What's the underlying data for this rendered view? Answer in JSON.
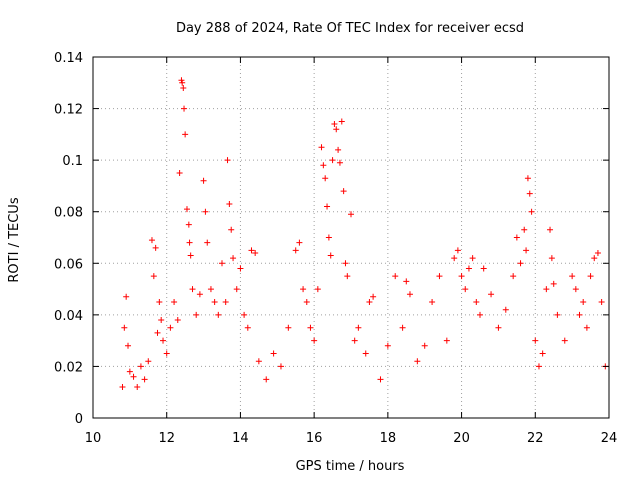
{
  "chart_data": {
    "type": "scatter",
    "title": "Day 288 of 2024, Rate Of TEC Index for receiver ecsd",
    "xlabel": "GPS time / hours",
    "ylabel": "ROTI / TECUs",
    "xlim": [
      10,
      24
    ],
    "ylim": [
      0,
      0.14
    ],
    "x_ticks": [
      "10",
      "12",
      "14",
      "16",
      "18",
      "20",
      "22",
      "24"
    ],
    "y_ticks": [
      "0",
      "0.02",
      "0.04",
      "0.06",
      "0.08",
      "0.1",
      "0.12",
      "0.14"
    ],
    "grid": true,
    "marker": "+",
    "marker_color": "#ff0000",
    "series": [
      {
        "name": "",
        "points": [
          [
            10.8,
            0.012
          ],
          [
            10.85,
            0.035
          ],
          [
            10.9,
            0.047
          ],
          [
            10.95,
            0.028
          ],
          [
            11.0,
            0.018
          ],
          [
            11.1,
            0.016
          ],
          [
            11.2,
            0.012
          ],
          [
            11.3,
            0.02
          ],
          [
            11.4,
            0.015
          ],
          [
            11.5,
            0.022
          ],
          [
            11.6,
            0.069
          ],
          [
            11.65,
            0.055
          ],
          [
            11.7,
            0.066
          ],
          [
            11.75,
            0.033
          ],
          [
            11.8,
            0.045
          ],
          [
            11.85,
            0.038
          ],
          [
            11.9,
            0.03
          ],
          [
            12.0,
            0.025
          ],
          [
            12.1,
            0.035
          ],
          [
            12.2,
            0.045
          ],
          [
            12.3,
            0.038
          ],
          [
            12.35,
            0.095
          ],
          [
            12.4,
            0.131
          ],
          [
            12.42,
            0.13
          ],
          [
            12.45,
            0.128
          ],
          [
            12.47,
            0.12
          ],
          [
            12.5,
            0.11
          ],
          [
            12.55,
            0.081
          ],
          [
            12.6,
            0.075
          ],
          [
            12.62,
            0.068
          ],
          [
            12.65,
            0.063
          ],
          [
            12.7,
            0.05
          ],
          [
            12.8,
            0.04
          ],
          [
            12.9,
            0.048
          ],
          [
            13.0,
            0.092
          ],
          [
            13.05,
            0.08
          ],
          [
            13.1,
            0.068
          ],
          [
            13.2,
            0.05
          ],
          [
            13.3,
            0.045
          ],
          [
            13.4,
            0.04
          ],
          [
            13.5,
            0.06
          ],
          [
            13.6,
            0.045
          ],
          [
            13.65,
            0.1
          ],
          [
            13.7,
            0.083
          ],
          [
            13.75,
            0.073
          ],
          [
            13.8,
            0.062
          ],
          [
            13.9,
            0.05
          ],
          [
            14.0,
            0.058
          ],
          [
            14.1,
            0.04
          ],
          [
            14.2,
            0.035
          ],
          [
            14.3,
            0.065
          ],
          [
            14.4,
            0.064
          ],
          [
            14.5,
            0.022
          ],
          [
            14.7,
            0.015
          ],
          [
            14.9,
            0.025
          ],
          [
            15.1,
            0.02
          ],
          [
            15.3,
            0.035
          ],
          [
            15.5,
            0.065
          ],
          [
            15.6,
            0.068
          ],
          [
            15.7,
            0.05
          ],
          [
            15.8,
            0.045
          ],
          [
            15.9,
            0.035
          ],
          [
            16.0,
            0.03
          ],
          [
            16.1,
            0.05
          ],
          [
            16.2,
            0.105
          ],
          [
            16.25,
            0.098
          ],
          [
            16.3,
            0.093
          ],
          [
            16.35,
            0.082
          ],
          [
            16.4,
            0.07
          ],
          [
            16.45,
            0.063
          ],
          [
            16.5,
            0.1
          ],
          [
            16.55,
            0.114
          ],
          [
            16.6,
            0.112
          ],
          [
            16.65,
            0.104
          ],
          [
            16.7,
            0.099
          ],
          [
            16.75,
            0.115
          ],
          [
            16.8,
            0.088
          ],
          [
            16.85,
            0.06
          ],
          [
            16.9,
            0.055
          ],
          [
            17.0,
            0.079
          ],
          [
            17.1,
            0.03
          ],
          [
            17.2,
            0.035
          ],
          [
            17.4,
            0.025
          ],
          [
            17.5,
            0.045
          ],
          [
            17.6,
            0.047
          ],
          [
            17.8,
            0.015
          ],
          [
            18.0,
            0.028
          ],
          [
            18.2,
            0.055
          ],
          [
            18.4,
            0.035
          ],
          [
            18.5,
            0.053
          ],
          [
            18.6,
            0.048
          ],
          [
            18.8,
            0.022
          ],
          [
            19.0,
            0.028
          ],
          [
            19.2,
            0.045
          ],
          [
            19.4,
            0.055
          ],
          [
            19.6,
            0.03
          ],
          [
            19.8,
            0.062
          ],
          [
            19.9,
            0.065
          ],
          [
            20.0,
            0.055
          ],
          [
            20.1,
            0.05
          ],
          [
            20.2,
            0.058
          ],
          [
            20.3,
            0.062
          ],
          [
            20.4,
            0.045
          ],
          [
            20.5,
            0.04
          ],
          [
            20.6,
            0.058
          ],
          [
            20.8,
            0.048
          ],
          [
            21.0,
            0.035
          ],
          [
            21.2,
            0.042
          ],
          [
            21.4,
            0.055
          ],
          [
            21.5,
            0.07
          ],
          [
            21.6,
            0.06
          ],
          [
            21.7,
            0.073
          ],
          [
            21.75,
            0.065
          ],
          [
            21.8,
            0.093
          ],
          [
            21.85,
            0.087
          ],
          [
            21.9,
            0.08
          ],
          [
            22.0,
            0.03
          ],
          [
            22.1,
            0.02
          ],
          [
            22.2,
            0.025
          ],
          [
            22.3,
            0.05
          ],
          [
            22.4,
            0.073
          ],
          [
            22.45,
            0.062
          ],
          [
            22.5,
            0.052
          ],
          [
            22.6,
            0.04
          ],
          [
            22.8,
            0.03
          ],
          [
            23.0,
            0.055
          ],
          [
            23.1,
            0.05
          ],
          [
            23.2,
            0.04
          ],
          [
            23.3,
            0.045
          ],
          [
            23.4,
            0.035
          ],
          [
            23.5,
            0.055
          ],
          [
            23.6,
            0.062
          ],
          [
            23.7,
            0.064
          ],
          [
            23.8,
            0.045
          ],
          [
            23.9,
            0.02
          ]
        ]
      }
    ]
  }
}
